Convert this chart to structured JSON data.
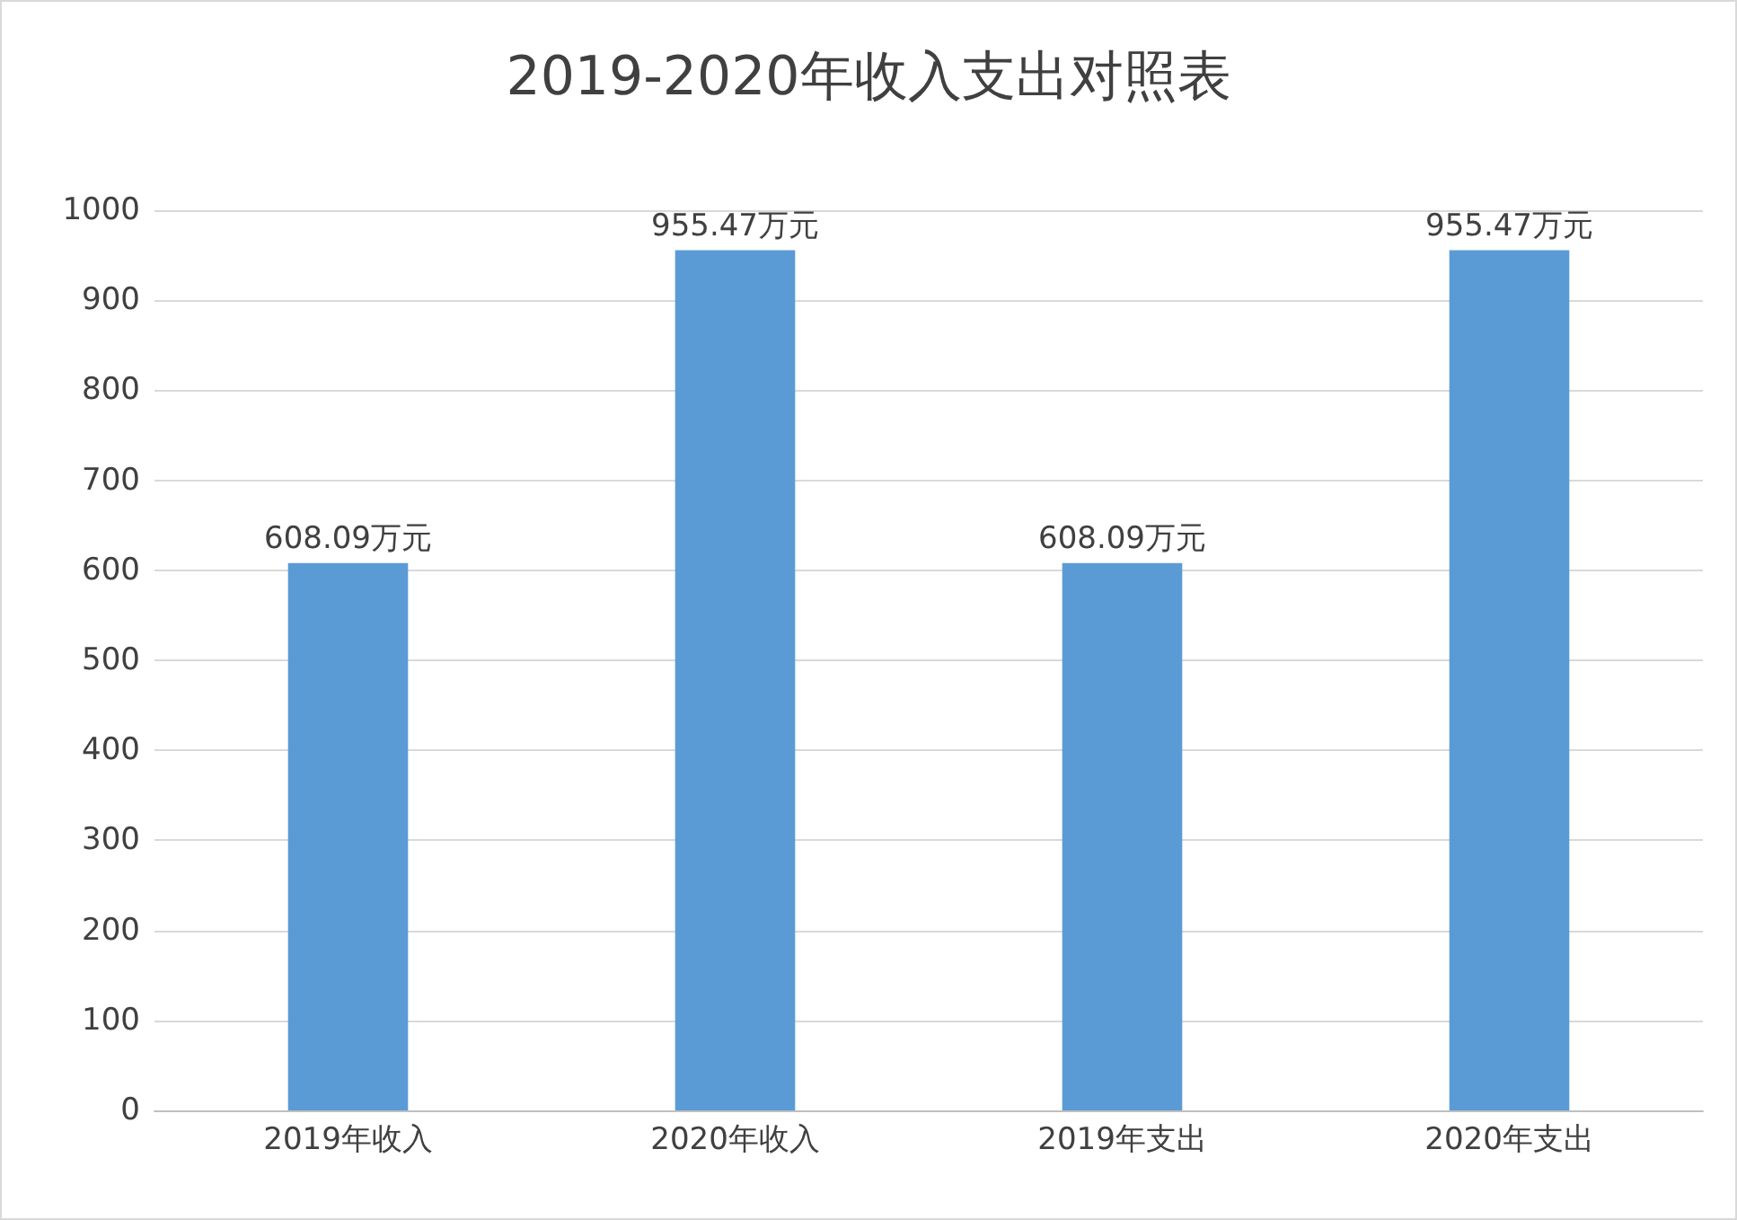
{
  "chart_data": {
    "type": "bar",
    "title": "2019-2020年收入支出对照表",
    "categories": [
      "2019年收入",
      "2020年收入",
      "2019年支出",
      "2020年支出"
    ],
    "values": [
      608.09,
      955.47,
      608.09,
      955.47
    ],
    "value_labels": [
      "608.09万元",
      "955.47万元",
      "608.09万元",
      "955.47万元"
    ],
    "color": "#5b9bd5",
    "ylim": [
      0,
      1000
    ],
    "yticks": [
      0,
      100,
      200,
      300,
      400,
      500,
      600,
      700,
      800,
      900,
      1000
    ],
    "grid": "y"
  }
}
